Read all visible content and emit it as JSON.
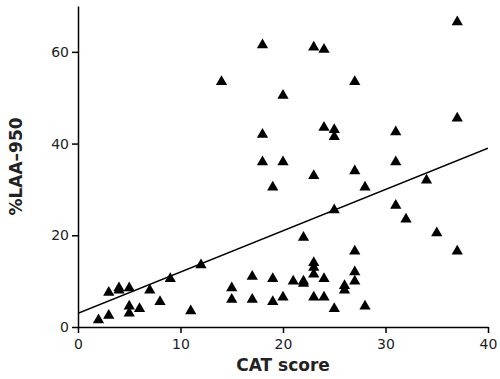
{
  "chart_data": {
    "type": "scatter",
    "x_label": "CAT score",
    "y_label": "%LAA–950",
    "xlim": [
      0,
      40
    ],
    "ylim": [
      0,
      70
    ],
    "xticks": [
      0,
      10,
      20,
      30,
      40
    ],
    "yticks": [
      0,
      20,
      40,
      60
    ],
    "grid": false,
    "series": [
      {
        "type": "scatter",
        "marker": "triangle",
        "color": "#000000",
        "x": [
          2,
          3,
          3,
          4,
          4,
          5,
          5,
          5,
          6,
          7,
          8,
          9,
          11,
          12,
          14,
          15,
          15,
          17,
          17,
          18,
          18,
          18,
          19,
          19,
          19,
          20,
          20,
          20,
          21,
          22,
          22,
          22,
          23,
          23,
          23,
          23,
          23,
          23,
          24,
          24,
          24,
          24,
          25,
          25,
          25,
          25,
          26,
          26,
          27,
          27,
          27,
          27,
          27,
          28,
          28,
          31,
          31,
          31,
          32,
          34,
          35,
          37,
          37,
          37
        ],
        "values": [
          1.5,
          2.5,
          7.5,
          8,
          8.5,
          3,
          4.5,
          8.5,
          4,
          8,
          5.5,
          10.5,
          3.5,
          13.5,
          53.5,
          6,
          8.5,
          6,
          11,
          42,
          36,
          61.5,
          10.5,
          5.5,
          30.5,
          36,
          50.5,
          6.5,
          10,
          19.5,
          9.5,
          10,
          61,
          13,
          14,
          11.5,
          33,
          6.5,
          60.5,
          43.5,
          10.5,
          6.5,
          43,
          41.5,
          25.5,
          4,
          8,
          9,
          53.5,
          34,
          16.5,
          12,
          10,
          30.5,
          4.5,
          42.5,
          36,
          26.5,
          23.5,
          32,
          20.5,
          66.5,
          45.5,
          16.5
        ]
      },
      {
        "type": "line",
        "line_style": "solid",
        "color": "#000000",
        "x": [
          0,
          40
        ],
        "values": [
          3,
          39
        ]
      }
    ]
  }
}
